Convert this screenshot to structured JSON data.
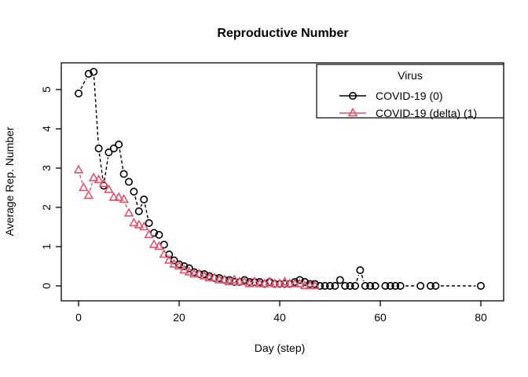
{
  "chart_data": {
    "type": "line",
    "title": "Reproductive Number",
    "xlabel": "Day (step)",
    "ylabel": "Average Rep. Number",
    "x_ticks": [
      0,
      20,
      40,
      60,
      80
    ],
    "y_ticks": [
      0,
      1,
      2,
      3,
      4,
      5
    ],
    "xlim": [
      -3.5,
      84
    ],
    "ylim": [
      -0.38,
      5.68
    ],
    "grid": false,
    "line_style": "dashed",
    "legend": {
      "title": "Virus",
      "position": "topright"
    },
    "series": [
      {
        "name": "COVID-19 (0)",
        "color": "#000000",
        "marker": "circle",
        "points": [
          [
            0,
            4.9
          ],
          [
            2,
            5.4
          ],
          [
            3,
            5.45
          ],
          [
            4,
            3.5
          ],
          [
            5,
            2.55
          ],
          [
            6,
            3.4
          ],
          [
            7,
            3.5
          ],
          [
            8,
            3.6
          ],
          [
            9,
            2.85
          ],
          [
            10,
            2.65
          ],
          [
            11,
            2.4
          ],
          [
            12,
            1.9
          ],
          [
            13,
            2.2
          ],
          [
            14,
            1.6
          ],
          [
            15,
            1.35
          ],
          [
            16,
            1.3
          ],
          [
            17,
            1.05
          ],
          [
            18,
            0.8
          ],
          [
            19,
            0.65
          ],
          [
            20,
            0.55
          ],
          [
            21,
            0.5
          ],
          [
            22,
            0.45
          ],
          [
            23,
            0.35
          ],
          [
            24,
            0.3
          ],
          [
            25,
            0.3
          ],
          [
            26,
            0.25
          ],
          [
            27,
            0.2
          ],
          [
            28,
            0.2
          ],
          [
            29,
            0.15
          ],
          [
            30,
            0.15
          ],
          [
            31,
            0.1
          ],
          [
            32,
            0.1
          ],
          [
            33,
            0.15
          ],
          [
            34,
            0.1
          ],
          [
            35,
            0.1
          ],
          [
            36,
            0.1
          ],
          [
            37,
            0.05
          ],
          [
            38,
            0.1
          ],
          [
            39,
            0.05
          ],
          [
            40,
            0.05
          ],
          [
            41,
            0.05
          ],
          [
            42,
            0.05
          ],
          [
            43,
            0.1
          ],
          [
            44,
            0.15
          ],
          [
            45,
            0.1
          ],
          [
            46,
            0.05
          ],
          [
            47,
            0.05
          ],
          [
            48,
            0
          ],
          [
            49,
            0
          ],
          [
            50,
            0
          ],
          [
            51,
            0
          ],
          [
            52,
            0.15
          ],
          [
            53,
            0
          ],
          [
            54,
            0
          ],
          [
            55,
            0
          ],
          [
            56,
            0.4
          ],
          [
            57,
            0
          ],
          [
            58,
            0
          ],
          [
            59,
            0
          ],
          [
            61,
            0
          ],
          [
            62,
            0
          ],
          [
            63,
            0
          ],
          [
            64,
            0
          ],
          [
            68,
            0
          ],
          [
            70,
            0
          ],
          [
            71,
            0
          ],
          [
            80,
            0
          ]
        ]
      },
      {
        "name": "COVID-19 (delta) (1)",
        "color": "#DF536B",
        "marker": "triangle",
        "points": [
          [
            0,
            2.95
          ],
          [
            1,
            2.5
          ],
          [
            2,
            2.3
          ],
          [
            3,
            2.75
          ],
          [
            4,
            2.7
          ],
          [
            5,
            2.6
          ],
          [
            6,
            2.45
          ],
          [
            7,
            2.25
          ],
          [
            8,
            2.25
          ],
          [
            9,
            2.2
          ],
          [
            10,
            1.85
          ],
          [
            11,
            1.6
          ],
          [
            12,
            1.55
          ],
          [
            13,
            1.5
          ],
          [
            14,
            1.3
          ],
          [
            15,
            1.05
          ],
          [
            16,
            1.0
          ],
          [
            17,
            0.8
          ],
          [
            18,
            0.65
          ],
          [
            19,
            0.55
          ],
          [
            20,
            0.5
          ],
          [
            21,
            0.4
          ],
          [
            22,
            0.35
          ],
          [
            23,
            0.3
          ],
          [
            24,
            0.3
          ],
          [
            25,
            0.25
          ],
          [
            26,
            0.2
          ],
          [
            27,
            0.2
          ],
          [
            28,
            0.15
          ],
          [
            29,
            0.15
          ],
          [
            30,
            0.1
          ],
          [
            31,
            0.15
          ],
          [
            32,
            0.1
          ],
          [
            33,
            0.1
          ],
          [
            34,
            0.05
          ],
          [
            35,
            0.1
          ],
          [
            36,
            0.05
          ],
          [
            37,
            0.05
          ],
          [
            38,
            0.1
          ],
          [
            39,
            0.05
          ],
          [
            40,
            0.05
          ],
          [
            41,
            0.1
          ],
          [
            42,
            0.05
          ],
          [
            43,
            0.05
          ],
          [
            44,
            0.05
          ],
          [
            45,
            0
          ],
          [
            46,
            0
          ],
          [
            47,
            0
          ]
        ]
      }
    ],
    "colors": {
      "foreground": "#000000",
      "background": "#ffffff",
      "series2": "#DF536B"
    }
  }
}
